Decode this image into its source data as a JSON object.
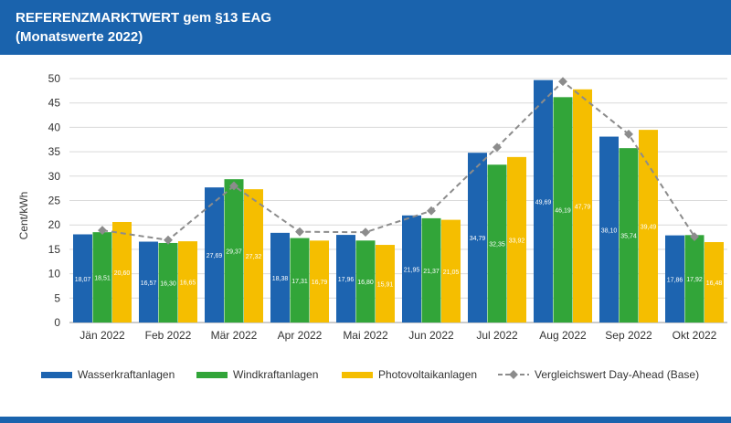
{
  "header": {
    "title_line1": "REFERENZMARKTWERT gem §13 EAG",
    "title_line2": "(Monatswerte 2022)"
  },
  "colors": {
    "header": "#1a63ad",
    "wasser": "#1d64b0",
    "wind": "#32a539",
    "pv": "#f5be00",
    "line": "#8c8c8c"
  },
  "chart_data": {
    "type": "bar",
    "ylabel": "Cent/kWh",
    "ylim": [
      0,
      50
    ],
    "yticks": [
      0,
      5,
      10,
      15,
      20,
      25,
      30,
      35,
      40,
      45,
      50
    ],
    "grid": true,
    "legend_position": "bottom",
    "categories": [
      "Jän 2022",
      "Feb 2022",
      "Mär 2022",
      "Apr 2022",
      "Mai 2022",
      "Jun 2022",
      "Jul 2022",
      "Aug 2022",
      "Sep 2022",
      "Okt 2022"
    ],
    "series": [
      {
        "name": "Wasserkraftanlagen",
        "type": "bar",
        "values": [
          18.07,
          16.57,
          27.69,
          18.38,
          17.96,
          21.95,
          34.79,
          49.69,
          38.1,
          17.86
        ],
        "labels": [
          "18,07",
          "16,57",
          "27,69",
          "18,38",
          "17,96",
          "21,95",
          "34,79",
          "49,69",
          "38,10",
          "17,86"
        ]
      },
      {
        "name": "Windkraftanlagen",
        "type": "bar",
        "values": [
          18.51,
          16.3,
          29.37,
          17.31,
          16.8,
          21.37,
          32.35,
          46.19,
          35.74,
          17.92
        ],
        "labels": [
          "18,51",
          "16,30",
          "29,37",
          "17,31",
          "16,80",
          "21,37",
          "32,35",
          "46,19",
          "35,74",
          "17,92"
        ]
      },
      {
        "name": "Photovoltaikanlagen",
        "type": "bar",
        "values": [
          20.6,
          16.65,
          27.32,
          16.79,
          15.91,
          21.05,
          33.92,
          47.79,
          39.49,
          16.48
        ],
        "labels": [
          "20,60",
          "16,65",
          "27,32",
          "16,79",
          "15,91",
          "21,05",
          "33,92",
          "47,79",
          "39,49",
          "16,48"
        ]
      },
      {
        "name": "Vergleichswert Day-Ahead (Base)",
        "type": "line",
        "values": [
          18.9,
          16.9,
          28.0,
          18.6,
          18.5,
          22.9,
          35.9,
          49.4,
          38.6,
          17.6
        ]
      }
    ]
  }
}
